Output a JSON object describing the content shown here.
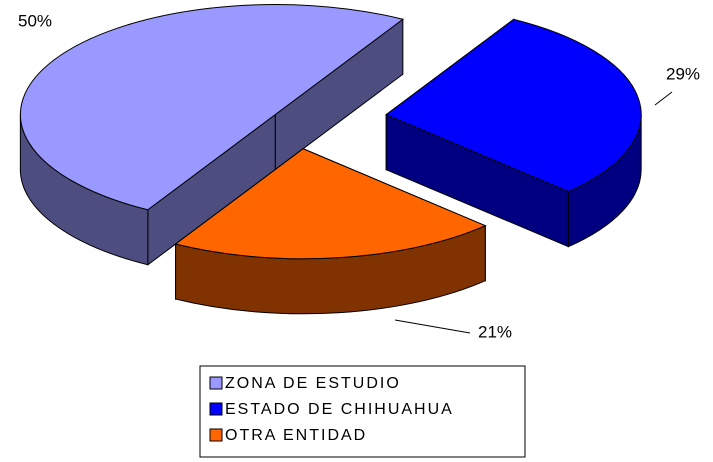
{
  "chart_data": {
    "type": "pie3d",
    "categories": [
      "ZONA DE ESTUDIO",
      "ESTADO DE CHIHUAHUA",
      "OTRA ENTIDAD"
    ],
    "values": [
      50,
      29,
      21
    ],
    "value_labels": [
      "50%",
      "29%",
      "21%"
    ],
    "colors": [
      "#9999ff",
      "#0000ff",
      "#ff6600"
    ],
    "side_colors": [
      "#4d4d80",
      "#000080",
      "#803300"
    ],
    "legend": "bottom"
  }
}
